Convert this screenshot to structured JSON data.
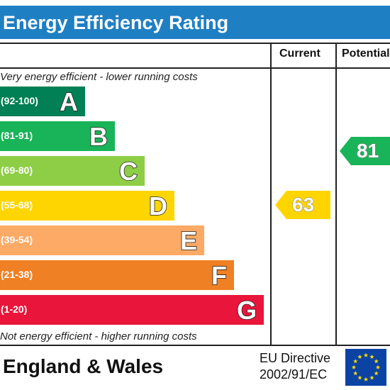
{
  "chart_data": {
    "type": "bar",
    "title": "Energy Efficiency Rating",
    "column_headers": [
      "Current",
      "Potential"
    ],
    "top_note": "Very energy efficient - lower running costs",
    "bottom_note": "Not energy efficient - higher running costs",
    "bands": [
      {
        "letter": "A",
        "range": "(92-100)",
        "color": "#008054"
      },
      {
        "letter": "B",
        "range": "(81-91)",
        "color": "#19b459"
      },
      {
        "letter": "C",
        "range": "(69-80)",
        "color": "#8dce46"
      },
      {
        "letter": "D",
        "range": "(55-68)",
        "color": "#ffd500"
      },
      {
        "letter": "E",
        "range": "(39-54)",
        "color": "#fcaa65"
      },
      {
        "letter": "F",
        "range": "(21-38)",
        "color": "#ef8023"
      },
      {
        "letter": "G",
        "range": "(1-20)",
        "color": "#e9153b"
      }
    ],
    "current": {
      "value": 63,
      "band": "D",
      "color": "#ffd500"
    },
    "potential": {
      "value": 81,
      "band": "B",
      "color": "#19b459"
    }
  },
  "footer": {
    "region": "England & Wales",
    "directive_line1": "EU Directive",
    "directive_line2": "2002/91/EC",
    "flag_icon": "eu-flag-icon"
  }
}
